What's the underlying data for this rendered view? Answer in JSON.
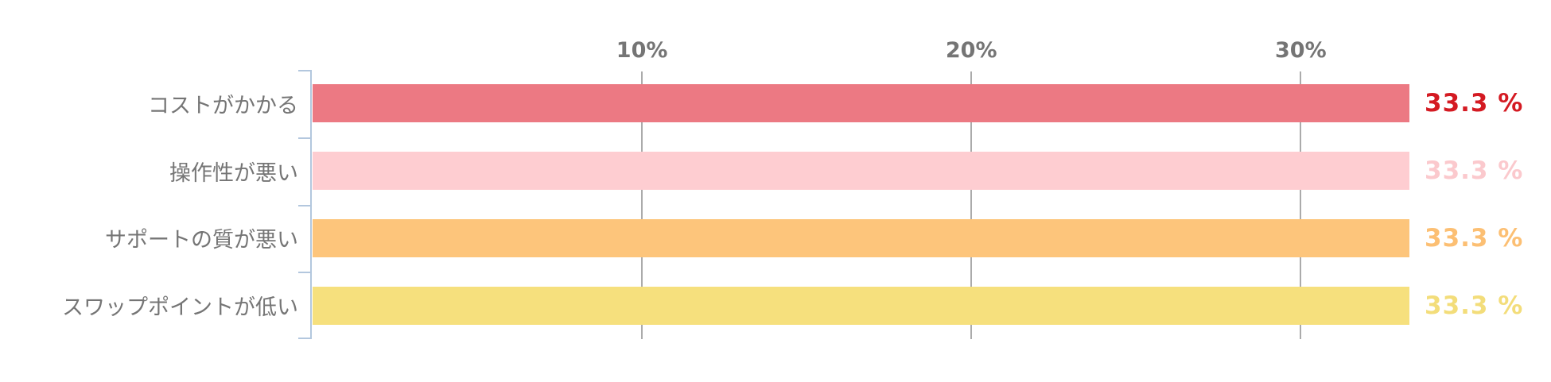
{
  "chart_data": {
    "type": "bar",
    "orientation": "horizontal",
    "title": "",
    "xlabel": "",
    "ylabel": "",
    "categories": [
      "コストがかかる",
      "操作性が悪い",
      "サポートの質が悪い",
      "スワップポイントが低い"
    ],
    "values": [
      33.3,
      33.3,
      33.3,
      33.3
    ],
    "value_labels": [
      "33.3 %",
      "33.3 %",
      "33.3 %",
      "33.3 %"
    ],
    "bar_colors": [
      "#ec7983",
      "#fecdd1",
      "#fdc57b",
      "#f6e07d"
    ],
    "value_label_colors": [
      "#d41a22",
      "#fbc9cd",
      "#fcbf73",
      "#f3dd7a"
    ],
    "x_ticks": [
      {
        "label": "10%",
        "value": 10
      },
      {
        "label": "20%",
        "value": 20
      },
      {
        "label": "30%",
        "value": 30
      }
    ],
    "xlim": [
      0,
      33.3
    ],
    "grid": "vertical-gridlines-at-ticks",
    "legend_position": "none"
  },
  "style_colors": {
    "axis_line": "#b3c7de",
    "gridline": "#ababab",
    "tick_label_text": "#757575",
    "category_label_text": "#757575",
    "background": "#ffffff"
  }
}
